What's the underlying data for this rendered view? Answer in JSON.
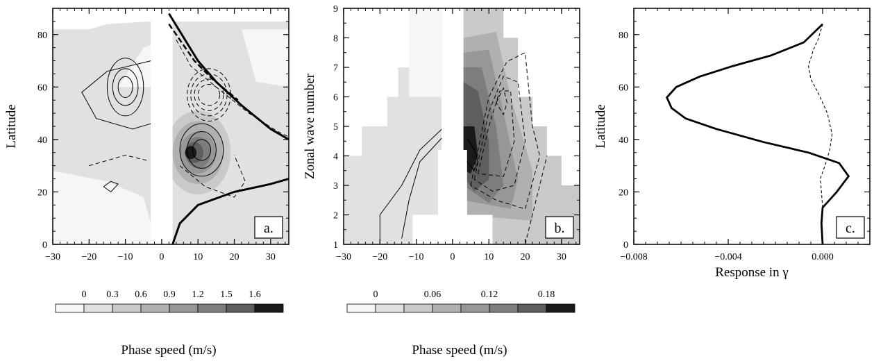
{
  "chart_data": [
    {
      "id": "a",
      "type": "heatmap",
      "panel_label": "a.",
      "xlabel": "Phase speed (m/s)",
      "ylabel": "Latitude",
      "xlim": [
        -30,
        35
      ],
      "ylim": [
        0,
        90
      ],
      "xticks": [
        -30,
        -20,
        -10,
        0,
        10,
        20,
        30
      ],
      "yticks": [
        0,
        20,
        40,
        60,
        80
      ],
      "colorbar": {
        "tick_labels": [
          "0",
          "0.3",
          "0.6",
          "0.9",
          "1.2",
          "1.5",
          "1.6"
        ],
        "colors": [
          "#f6f6f6",
          "#e1e1e1",
          "#c9c9c9",
          "#b0b0b0",
          "#979797",
          "#7d7d7d",
          "#5e5e5e",
          "#1a1a1a"
        ]
      },
      "shaded_blobs": [
        {
          "x": 10,
          "y": 35,
          "rx": 9,
          "ry": 16,
          "level": 2
        },
        {
          "x": 10,
          "y": 35,
          "rx": 7,
          "ry": 12,
          "level": 3
        },
        {
          "x": 10,
          "y": 35,
          "rx": 5,
          "ry": 8,
          "level": 4
        },
        {
          "x": 10,
          "y": 35,
          "rx": 3.5,
          "ry": 6,
          "level": 5
        },
        {
          "x": 9,
          "y": 35,
          "rx": 2.5,
          "ry": 4,
          "level": 6
        },
        {
          "x": 8,
          "y": 35,
          "rx": 1.6,
          "ry": 2.5,
          "level": 7
        }
      ],
      "critical_lines": [
        {
          "name": "upper",
          "points": [
            [
              2,
              88
            ],
            [
              10,
              70
            ],
            [
              15,
              62
            ],
            [
              22,
              53
            ],
            [
              30,
              44
            ],
            [
              35,
              40
            ]
          ]
        },
        {
          "name": "lower",
          "points": [
            [
              3,
              0
            ],
            [
              5,
              8
            ],
            [
              10,
              15
            ],
            [
              20,
              20
            ],
            [
              30,
              23
            ],
            [
              35,
              25
            ]
          ]
        }
      ]
    },
    {
      "id": "b",
      "type": "heatmap",
      "panel_label": "b.",
      "xlabel": "Phase speed (m/s)",
      "ylabel": "Zonal wave number",
      "xlim": [
        -30,
        35
      ],
      "ylim": [
        1,
        9
      ],
      "xticks": [
        -30,
        -20,
        -10,
        0,
        10,
        20,
        30
      ],
      "yticks": [
        1,
        2,
        3,
        4,
        5,
        6,
        7,
        8,
        9
      ],
      "colorbar": {
        "tick_labels": [
          "0",
          "0.06",
          "0.12",
          "0.18"
        ],
        "colors": [
          "#f6f6f6",
          "#e1e1e1",
          "#c9c9c9",
          "#b0b0b0",
          "#979797",
          "#7d7d7d",
          "#5e5e5e",
          "#1a1a1a"
        ]
      }
    },
    {
      "id": "c",
      "type": "line",
      "panel_label": "c.",
      "xlabel": "Response in γ",
      "ylabel": "Latitude",
      "xlim": [
        -0.008,
        0.002
      ],
      "ylim": [
        0,
        90
      ],
      "xticks": [
        -0.008,
        -0.004,
        0.0
      ],
      "xtick_labels": [
        "−0.008",
        "−0.004",
        "0.000"
      ],
      "yticks": [
        0,
        20,
        40,
        60,
        80
      ],
      "series": [
        {
          "style": "solid",
          "points": [
            [
              0,
              0
            ],
            [
              -5e-05,
              8
            ],
            [
              0,
              14
            ],
            [
              0.0006,
              20
            ],
            [
              0.0011,
              26
            ],
            [
              0.0007,
              31
            ],
            [
              -0.0006,
              35
            ],
            [
              -0.0025,
              39
            ],
            [
              -0.0045,
              44
            ],
            [
              -0.0058,
              48
            ],
            [
              -0.0064,
              52
            ],
            [
              -0.0066,
              56
            ],
            [
              -0.0062,
              60
            ],
            [
              -0.0052,
              64
            ],
            [
              -0.0038,
              68
            ],
            [
              -0.0022,
              72
            ],
            [
              -0.0008,
              77
            ],
            [
              0,
              84
            ]
          ]
        },
        {
          "style": "dashed",
          "points": [
            [
              0,
              14
            ],
            [
              -5e-05,
              20
            ],
            [
              -0.0001,
              25
            ],
            [
              0.0001,
              30
            ],
            [
              0.0003,
              36
            ],
            [
              0.0004,
              42
            ],
            [
              0.0002,
              50
            ],
            [
              -0.0002,
              58
            ],
            [
              -0.0005,
              63
            ],
            [
              -0.0006,
              68
            ],
            [
              -0.0004,
              74
            ],
            [
              -0.0002,
              78
            ],
            [
              0,
              84
            ]
          ]
        }
      ]
    }
  ]
}
